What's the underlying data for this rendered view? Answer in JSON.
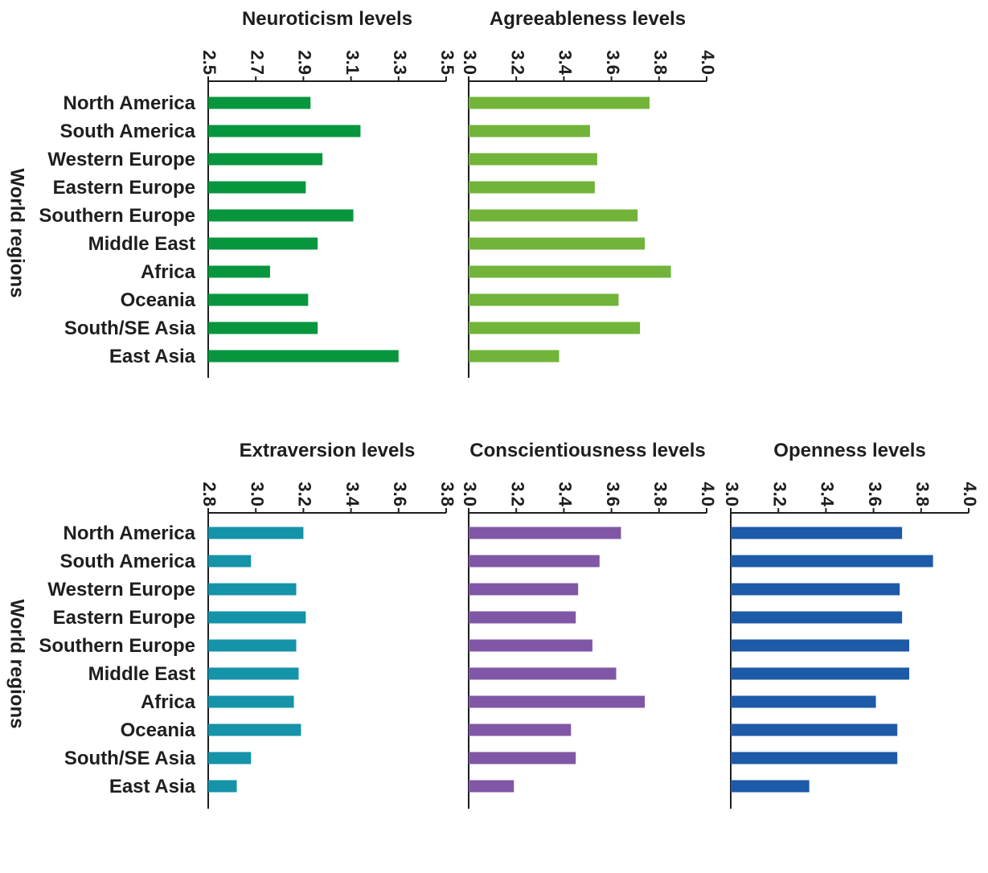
{
  "y_axis_label": "World regions",
  "chart_data": [
    {
      "type": "bar",
      "orientation": "horizontal",
      "title": "Neuroticism levels",
      "categories": [
        "North America",
        "South America",
        "Western Europe",
        "Eastern Europe",
        "Southern Europe",
        "Middle East",
        "Africa",
        "Oceania",
        "South/SE Asia",
        "East Asia"
      ],
      "values": [
        2.93,
        3.14,
        2.98,
        2.91,
        3.11,
        2.96,
        2.76,
        2.92,
        2.96,
        3.3
      ],
      "xlim": [
        2.5,
        3.5
      ],
      "ticks": [
        "2.5",
        "2.7",
        "2.9",
        "3.1",
        "3.3",
        "3.5"
      ],
      "ylabel": "World regions",
      "color": "#07963e"
    },
    {
      "type": "bar",
      "orientation": "horizontal",
      "title": "Agreeableness levels",
      "categories": [
        "North America",
        "South America",
        "Western Europe",
        "Eastern Europe",
        "Southern Europe",
        "Middle East",
        "Africa",
        "Oceania",
        "South/SE Asia",
        "East Asia"
      ],
      "values": [
        3.76,
        3.51,
        3.54,
        3.53,
        3.71,
        3.74,
        3.85,
        3.63,
        3.72,
        3.38
      ],
      "xlim": [
        3.0,
        4.0
      ],
      "ticks": [
        "3.0",
        "3.2",
        "3.4",
        "3.6",
        "3.8",
        "4.0"
      ],
      "color": "#72b43a"
    },
    {
      "type": "bar",
      "orientation": "horizontal",
      "title": "Extraversion levels",
      "categories": [
        "North America",
        "South America",
        "Western Europe",
        "Eastern Europe",
        "Southern Europe",
        "Middle East",
        "Africa",
        "Oceania",
        "South/SE Asia",
        "East Asia"
      ],
      "values": [
        3.2,
        2.98,
        3.17,
        3.21,
        3.17,
        3.18,
        3.16,
        3.19,
        2.98,
        2.92
      ],
      "xlim": [
        2.8,
        3.8
      ],
      "ticks": [
        "2.8",
        "3.0",
        "3.2",
        "3.4",
        "3.6",
        "3.8"
      ],
      "ylabel": "World regions",
      "color": "#1593a9"
    },
    {
      "type": "bar",
      "orientation": "horizontal",
      "title": "Conscientiousness levels",
      "categories": [
        "North America",
        "South America",
        "Western Europe",
        "Eastern Europe",
        "Southern Europe",
        "Middle East",
        "Africa",
        "Oceania",
        "South/SE Asia",
        "East Asia"
      ],
      "values": [
        3.64,
        3.55,
        3.46,
        3.45,
        3.52,
        3.62,
        3.74,
        3.43,
        3.45,
        3.19
      ],
      "xlim": [
        3.0,
        4.0
      ],
      "ticks": [
        "3.0",
        "3.2",
        "3.4",
        "3.6",
        "3.8",
        "4.0"
      ],
      "color": "#8057a6"
    },
    {
      "type": "bar",
      "orientation": "horizontal",
      "title": "Openness levels",
      "categories": [
        "North America",
        "South America",
        "Western Europe",
        "Eastern Europe",
        "Southern Europe",
        "Middle East",
        "Africa",
        "Oceania",
        "South/SE Asia",
        "East Asia"
      ],
      "values": [
        3.72,
        3.85,
        3.71,
        3.72,
        3.75,
        3.75,
        3.61,
        3.7,
        3.7,
        3.33
      ],
      "xlim": [
        3.0,
        4.0
      ],
      "ticks": [
        "3.0",
        "3.2",
        "3.4",
        "3.6",
        "3.8",
        "4.0"
      ],
      "color": "#1d5aa8"
    }
  ]
}
